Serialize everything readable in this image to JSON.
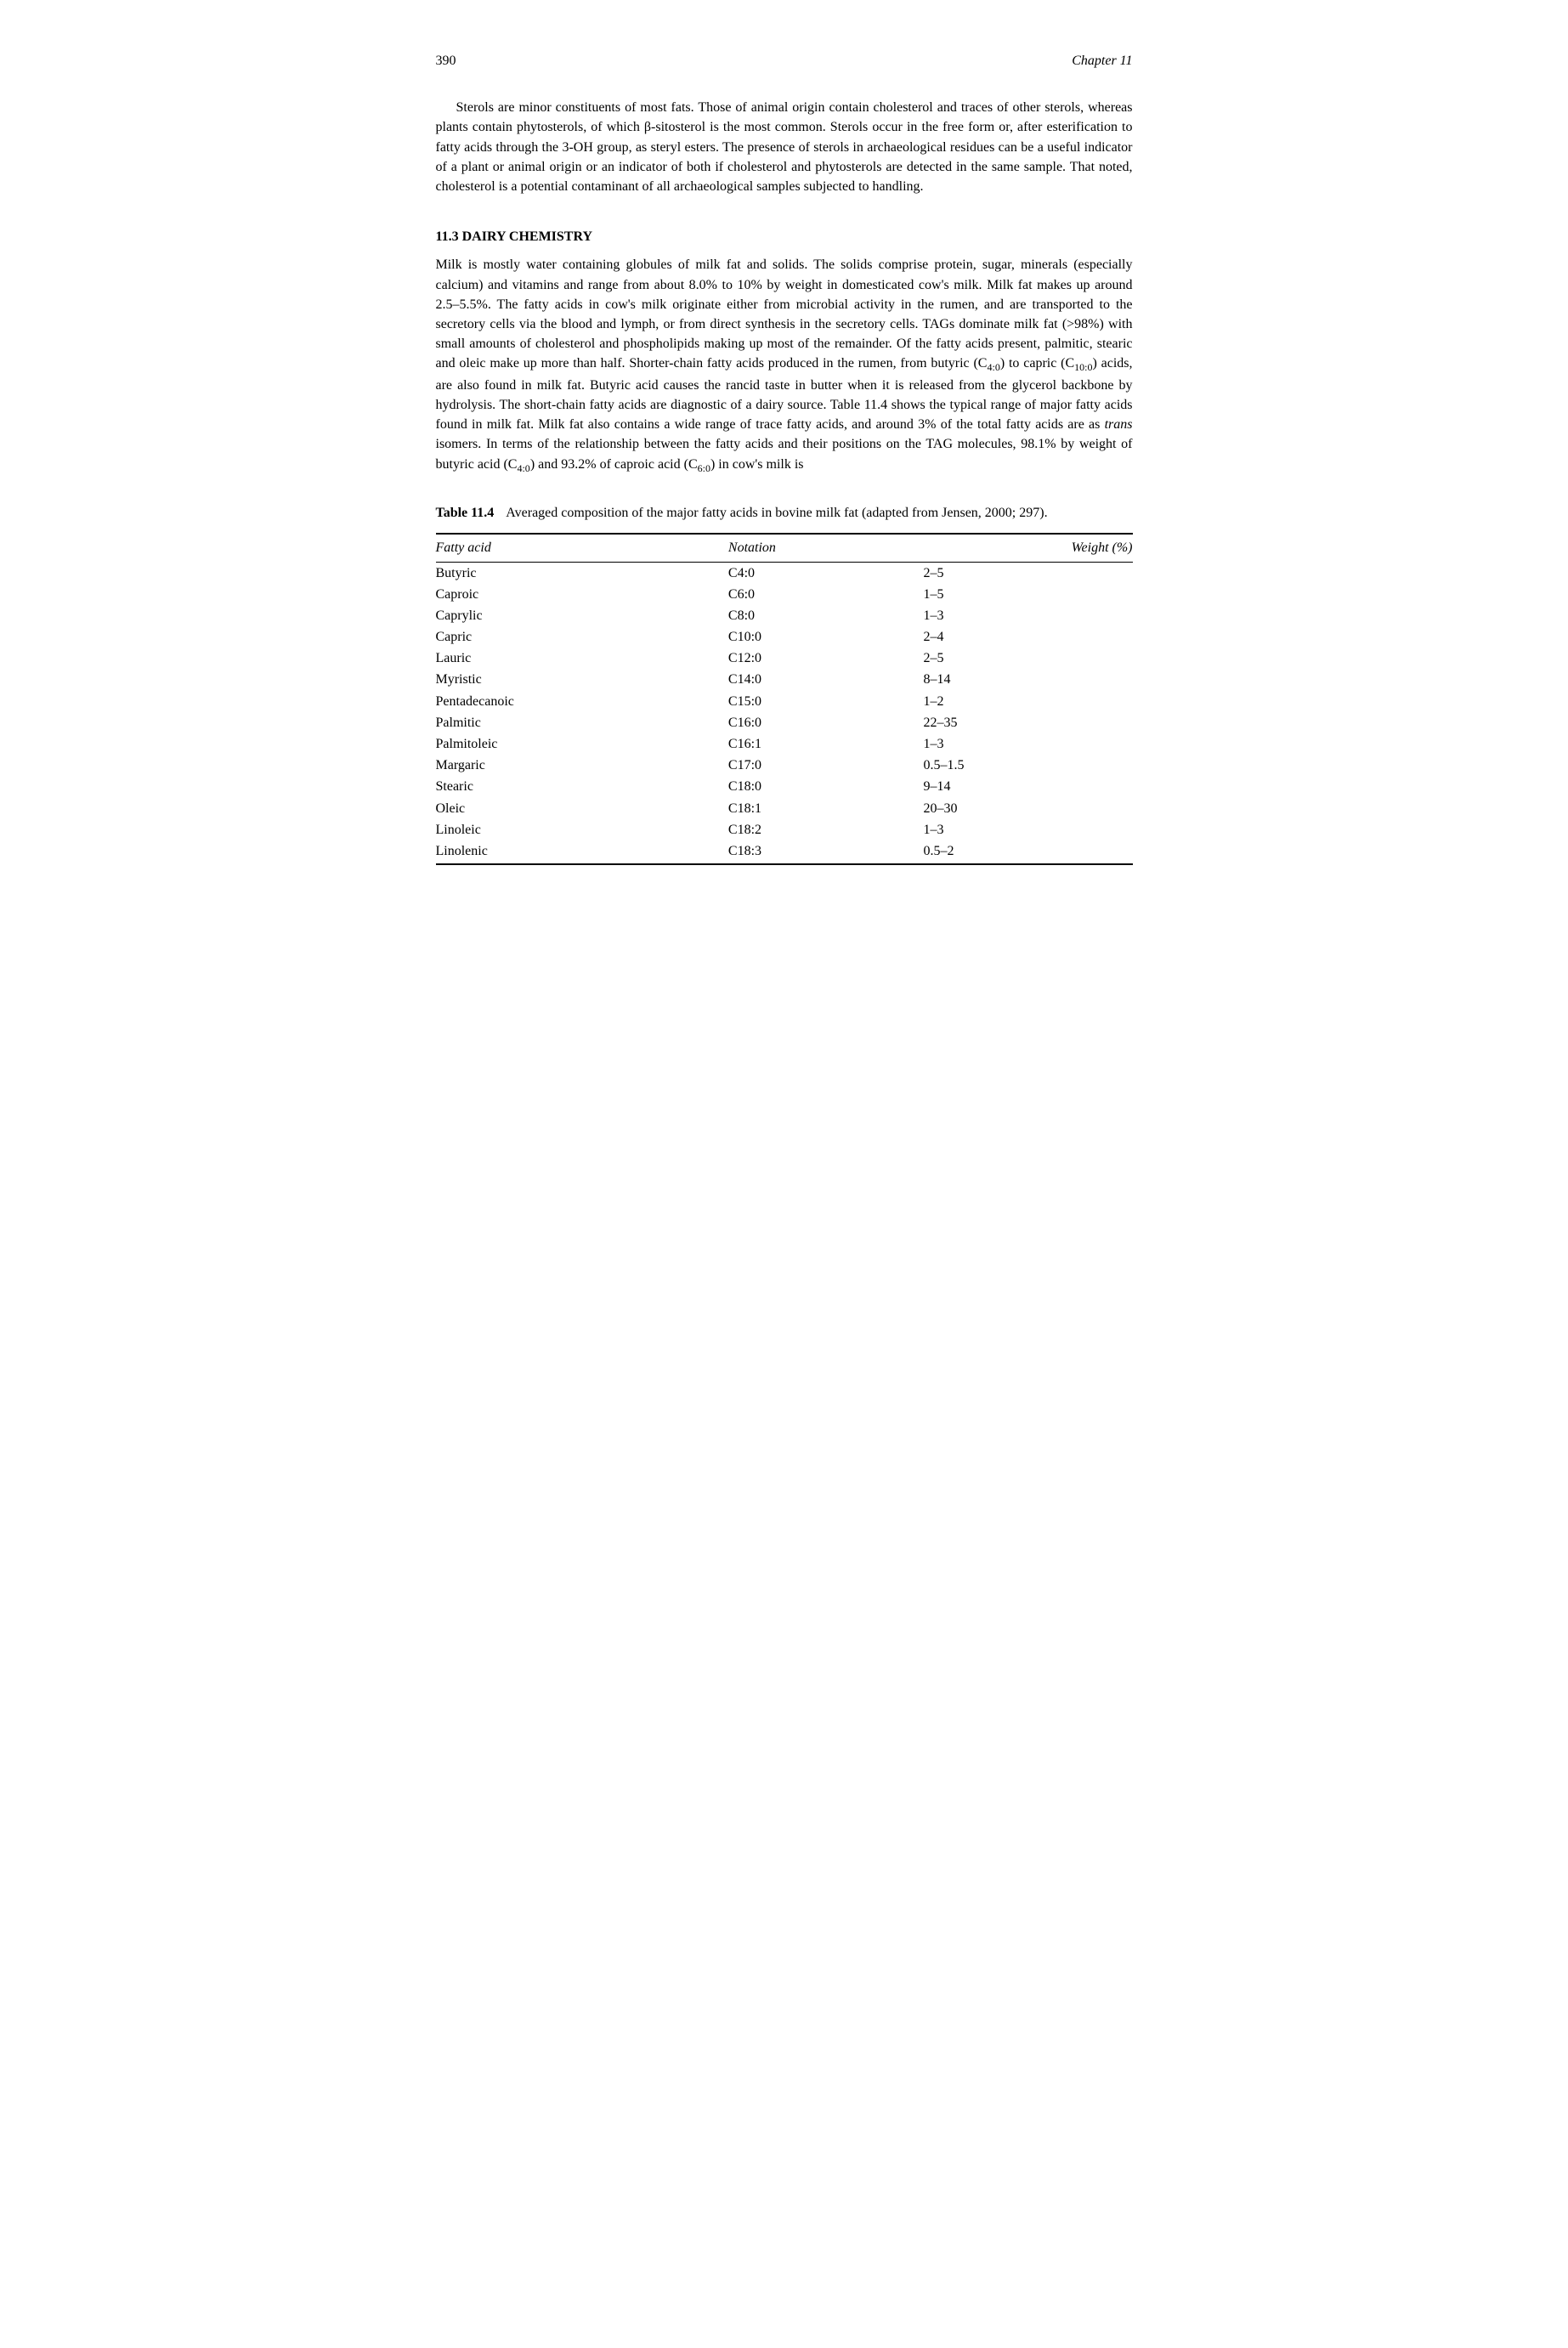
{
  "header": {
    "page_number": "390",
    "chapter_label": "Chapter 11"
  },
  "paragraphs": {
    "p1": "Sterols are minor constituents of most fats. Those of animal origin contain cholesterol and traces of other sterols, whereas plants contain phytosterols, of which β-sitosterol is the most common. Sterols occur in the free form or, after esterification to fatty acids through the 3-OH group, as steryl esters. The presence of sterols in archaeological residues can be a useful indicator of a plant or animal origin or an indicator of both if cholesterol and phytosterols are detected in the same sample. That noted, cholesterol is a potential contaminant of all archaeological samples subjected to handling.",
    "section_heading": "11.3   DAIRY CHEMISTRY",
    "p2_pre": "Milk is mostly water containing globules of milk fat and solids. The solids comprise protein, sugar, minerals (especially calcium) and vitamins and range from about 8.0% to 10% by weight in domesticated cow's milk. Milk fat makes up around 2.5–5.5%. The fatty acids in cow's milk originate either from microbial activity in the rumen, and are transported to the secretory cells via the blood and lymph, or from direct synthesis in the secretory cells. TAGs dominate milk fat (>98%) with small amounts of cholesterol and phospholipids making up most of the remainder. Of the fatty acids present, palmitic, stearic and oleic make up more than half. Shorter-chain fatty acids produced in the rumen, from butyric (C",
    "p2_sub1": "4:0",
    "p2_mid1": ") to capric (C",
    "p2_sub2": "10:0",
    "p2_mid2": ") acids, are also found in milk fat. Butyric acid causes the rancid taste in butter when it is released from the glycerol backbone by hydrolysis. The short-chain fatty acids are diagnostic of a dairy source. Table 11.4 shows the typical range of major fatty acids found in milk fat. Milk fat also contains a wide range of trace fatty acids, and around 3% of the total fatty acids are as ",
    "p2_trans": "trans",
    "p2_mid3": " isomers. In terms of the relationship between the fatty acids and their positions on the TAG molecules, 98.1% by weight of butyric acid (C",
    "p2_sub3": "4:0",
    "p2_mid4": ") and 93.2% of caproic acid (C",
    "p2_sub4": "6:0",
    "p2_post": ") in cow's milk is"
  },
  "table": {
    "caption_label": "Table 11.4",
    "caption_text": "Averaged composition of the major fatty acids in bovine milk fat (adapted from Jensen, 2000; 297).",
    "columns": {
      "col1": "Fatty acid",
      "col2": "Notation",
      "col3": "Weight (%)"
    },
    "rows": [
      {
        "acid": "Butyric",
        "notation": "C4:0",
        "weight": "2–5"
      },
      {
        "acid": "Caproic",
        "notation": "C6:0",
        "weight": "1–5"
      },
      {
        "acid": "Caprylic",
        "notation": "C8:0",
        "weight": "1–3"
      },
      {
        "acid": "Capric",
        "notation": "C10:0",
        "weight": "2–4"
      },
      {
        "acid": "Lauric",
        "notation": "C12:0",
        "weight": "2–5"
      },
      {
        "acid": "Myristic",
        "notation": "C14:0",
        "weight": "8–14"
      },
      {
        "acid": "Pentadecanoic",
        "notation": "C15:0",
        "weight": "1–2"
      },
      {
        "acid": "Palmitic",
        "notation": "C16:0",
        "weight": "22–35"
      },
      {
        "acid": "Palmitoleic",
        "notation": "C16:1",
        "weight": "1–3"
      },
      {
        "acid": "Margaric",
        "notation": "C17:0",
        "weight": "0.5–1.5"
      },
      {
        "acid": "Stearic",
        "notation": "C18:0",
        "weight": "9–14"
      },
      {
        "acid": "Oleic",
        "notation": "C18:1",
        "weight": "20–30"
      },
      {
        "acid": "Linoleic",
        "notation": "C18:2",
        "weight": "1–3"
      },
      {
        "acid": "Linolenic",
        "notation": "C18:3",
        "weight": "0.5–2"
      }
    ]
  }
}
